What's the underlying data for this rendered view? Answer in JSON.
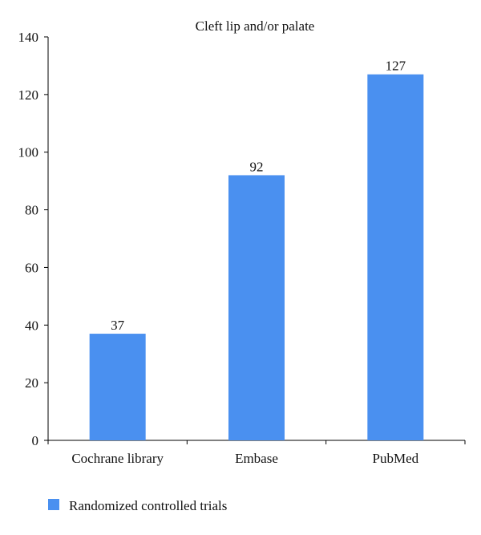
{
  "chart_data": {
    "type": "bar",
    "title": "Cleft lip and/or palate",
    "xlabel": "",
    "ylabel": "",
    "categories": [
      "Cochrane library",
      "Embase",
      "PubMed"
    ],
    "series": [
      {
        "name": "Randomized controlled trials",
        "values": [
          37,
          92,
          127
        ]
      }
    ],
    "data_labels": [
      "37",
      "92",
      "127"
    ],
    "ylim": [
      0,
      140
    ],
    "yticks": [
      0,
      20,
      40,
      60,
      80,
      100,
      120,
      140
    ],
    "grid": false,
    "legend_position": "bottom-left",
    "bar_color": "#4a90f0"
  }
}
